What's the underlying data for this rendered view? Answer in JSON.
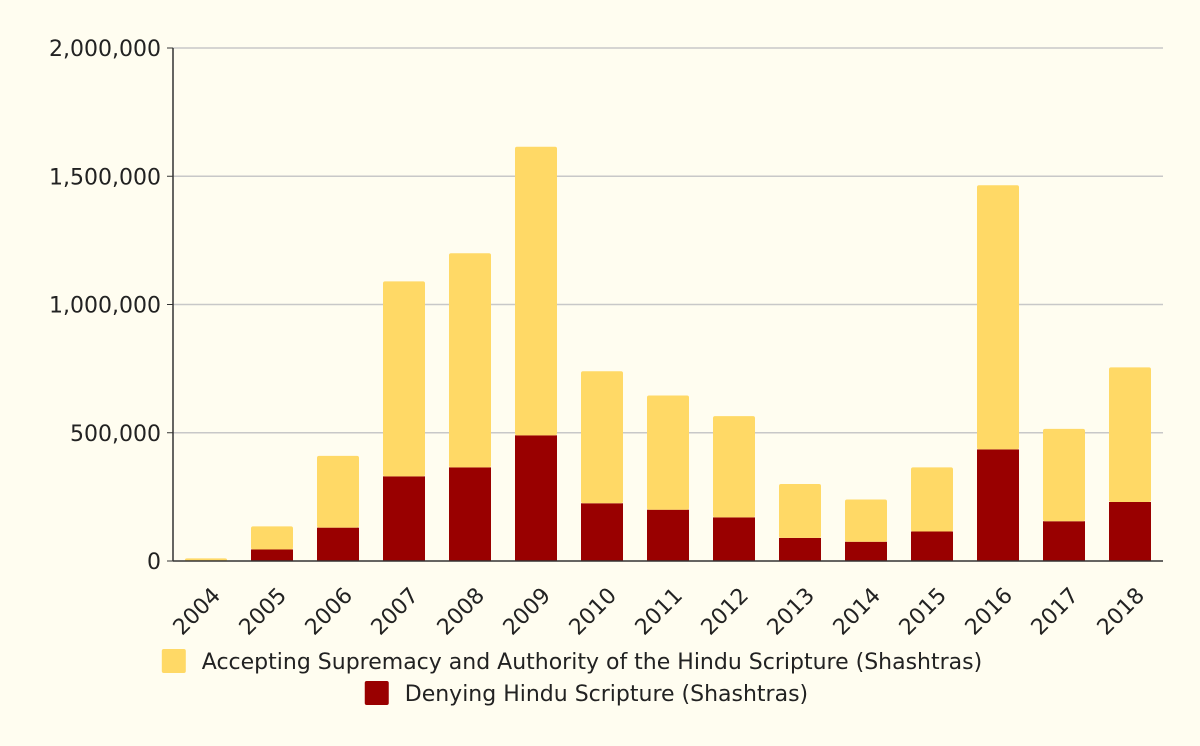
{
  "chart_data": {
    "type": "bar",
    "stacked": true,
    "categories": [
      "2004",
      "2005",
      "2006",
      "2007",
      "2008",
      "2009",
      "2010",
      "2011",
      "2012",
      "2013",
      "2014",
      "2015",
      "2016",
      "2017",
      "2018"
    ],
    "series": [
      {
        "name": "Denying Hindu Scripture (Shashtras)",
        "color": "#990000",
        "values": [
          0,
          45000,
          130000,
          330000,
          365000,
          490000,
          225000,
          200000,
          170000,
          90000,
          75000,
          115000,
          435000,
          155000,
          230000
        ]
      },
      {
        "name": "Accepting Supremacy and Authority of the Hindu Scripture (Shashtras)",
        "color": "#ffd966",
        "values": [
          10000,
          90000,
          280000,
          760000,
          835000,
          1125000,
          515000,
          445000,
          395000,
          210000,
          165000,
          250000,
          1030000,
          360000,
          525000
        ]
      }
    ],
    "yticks": [
      "0",
      "500,000",
      "1,000,000",
      "1,500,000",
      "2,000,000"
    ],
    "ylim": [
      0,
      2000000
    ],
    "grid": true,
    "legend_position": "bottom"
  }
}
